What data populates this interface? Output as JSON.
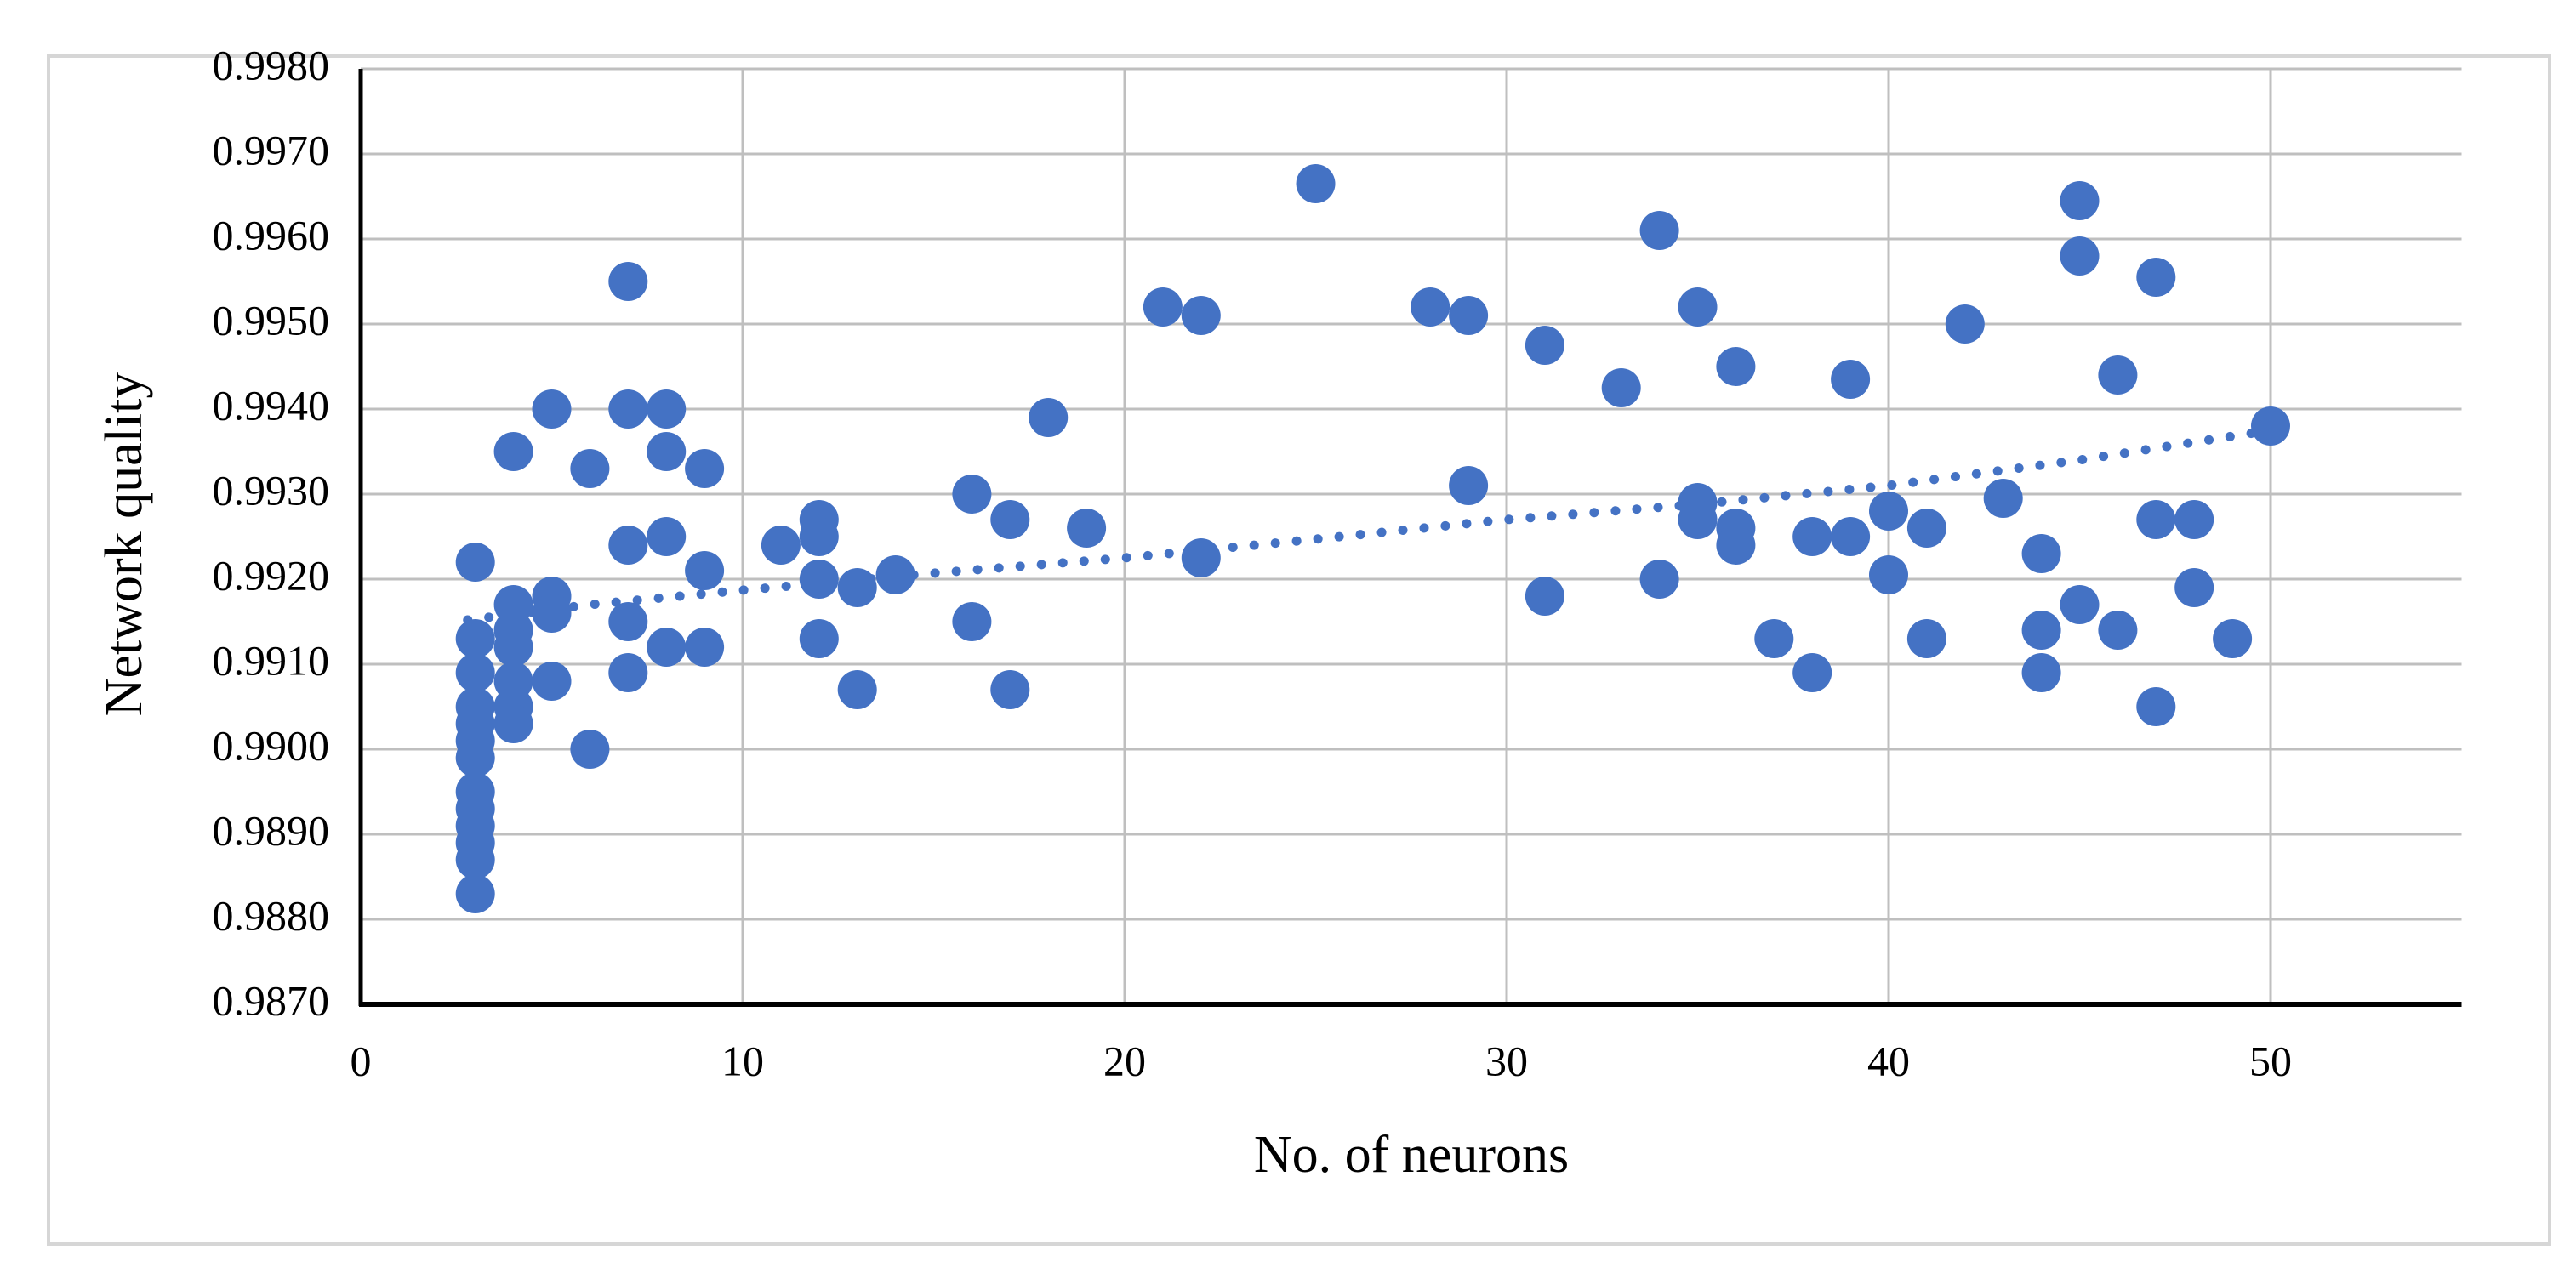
{
  "figure": {
    "frame_color": "#d6d6d6",
    "background": "#ffffff"
  },
  "chart_data": {
    "type": "scatter",
    "title": "",
    "xlabel": "No. of neurons",
    "ylabel": "Network quality",
    "xlim": [
      0,
      55
    ],
    "ylim": [
      0.987,
      0.998
    ],
    "grid": true,
    "legend": "none",
    "x_ticks": [
      "0",
      "10",
      "20",
      "30",
      "40",
      "50"
    ],
    "x_tick_values": [
      0,
      10,
      20,
      30,
      40,
      50
    ],
    "y_ticks": [
      "0.9980",
      "0.9970",
      "0.9960",
      "0.9950",
      "0.9940",
      "0.9930",
      "0.9920",
      "0.9910",
      "0.9900",
      "0.9890",
      "0.9880",
      "0.9870"
    ],
    "y_tick_values": [
      0.998,
      0.997,
      0.996,
      0.995,
      0.994,
      0.993,
      0.992,
      0.991,
      0.99,
      0.989,
      0.988,
      0.987
    ],
    "marker_color": "#4472C4",
    "trendline_color": "#4472C4",
    "gridline_color": "#BFBFBF",
    "axis_color": "#000000",
    "points": [
      [
        3,
        0.9922
      ],
      [
        3,
        0.9913
      ],
      [
        3,
        0.9909
      ],
      [
        3,
        0.9905
      ],
      [
        3,
        0.9903
      ],
      [
        3,
        0.9901
      ],
      [
        3,
        0.9899
      ],
      [
        3,
        0.9895
      ],
      [
        3,
        0.9893
      ],
      [
        3,
        0.9891
      ],
      [
        3,
        0.9889
      ],
      [
        3,
        0.9887
      ],
      [
        3,
        0.9883
      ],
      [
        4,
        0.9935
      ],
      [
        4,
        0.9917
      ],
      [
        4,
        0.9914
      ],
      [
        4,
        0.9912
      ],
      [
        4,
        0.9908
      ],
      [
        4,
        0.9905
      ],
      [
        4,
        0.9903
      ],
      [
        5,
        0.994
      ],
      [
        5,
        0.9918
      ],
      [
        5,
        0.9916
      ],
      [
        5,
        0.9908
      ],
      [
        6,
        0.9933
      ],
      [
        6,
        0.99
      ],
      [
        7,
        0.9955
      ],
      [
        7,
        0.994
      ],
      [
        7,
        0.9924
      ],
      [
        7,
        0.9915
      ],
      [
        7,
        0.9909
      ],
      [
        8,
        0.994
      ],
      [
        8,
        0.9935
      ],
      [
        8,
        0.9925
      ],
      [
        8,
        0.9912
      ],
      [
        9,
        0.9933
      ],
      [
        9,
        0.9921
      ],
      [
        9,
        0.9912
      ],
      [
        11,
        0.9924
      ],
      [
        12,
        0.9927
      ],
      [
        12,
        0.9925
      ],
      [
        12,
        0.992
      ],
      [
        12,
        0.9913
      ],
      [
        13,
        0.9919
      ],
      [
        13,
        0.9907
      ],
      [
        14,
        0.99205
      ],
      [
        16,
        0.993
      ],
      [
        16,
        0.9915
      ],
      [
        17,
        0.9927
      ],
      [
        17,
        0.9907
      ],
      [
        18,
        0.9939
      ],
      [
        19,
        0.9926
      ],
      [
        21,
        0.9952
      ],
      [
        22,
        0.9951
      ],
      [
        22,
        0.99225
      ],
      [
        25,
        0.99665
      ],
      [
        28,
        0.9952
      ],
      [
        29,
        0.9951
      ],
      [
        29,
        0.9931
      ],
      [
        31,
        0.99475
      ],
      [
        31,
        0.9918
      ],
      [
        33,
        0.99425
      ],
      [
        34,
        0.9961
      ],
      [
        34,
        0.992
      ],
      [
        35,
        0.9952
      ],
      [
        35,
        0.9929
      ],
      [
        35,
        0.9927
      ],
      [
        36,
        0.9945
      ],
      [
        36,
        0.9926
      ],
      [
        36,
        0.9924
      ],
      [
        37,
        0.9913
      ],
      [
        38,
        0.9925
      ],
      [
        38,
        0.9909
      ],
      [
        39,
        0.99435
      ],
      [
        39,
        0.9925
      ],
      [
        40,
        0.9928
      ],
      [
        40,
        0.99205
      ],
      [
        41,
        0.9926
      ],
      [
        41,
        0.9913
      ],
      [
        42,
        0.995
      ],
      [
        43,
        0.99295
      ],
      [
        44,
        0.9923
      ],
      [
        44,
        0.9914
      ],
      [
        44,
        0.9909
      ],
      [
        45,
        0.99645
      ],
      [
        45,
        0.9958
      ],
      [
        45,
        0.9917
      ],
      [
        46,
        0.9944
      ],
      [
        46,
        0.9914
      ],
      [
        47,
        0.99555
      ],
      [
        47,
        0.9927
      ],
      [
        47,
        0.9905
      ],
      [
        48,
        0.9927
      ],
      [
        48,
        0.9919
      ],
      [
        49,
        0.9913
      ],
      [
        50,
        0.9938
      ]
    ],
    "trendline": {
      "style": "dotted",
      "points": [
        [
          2.8,
          0.99152
        ],
        [
          6,
          0.9917
        ],
        [
          10,
          0.99187
        ],
        [
          15,
          0.99207
        ],
        [
          20,
          0.99225
        ],
        [
          25,
          0.99247
        ],
        [
          30,
          0.9927
        ],
        [
          35,
          0.99288
        ],
        [
          40,
          0.9931
        ],
        [
          45,
          0.9934
        ],
        [
          50,
          0.99375
        ]
      ]
    }
  }
}
